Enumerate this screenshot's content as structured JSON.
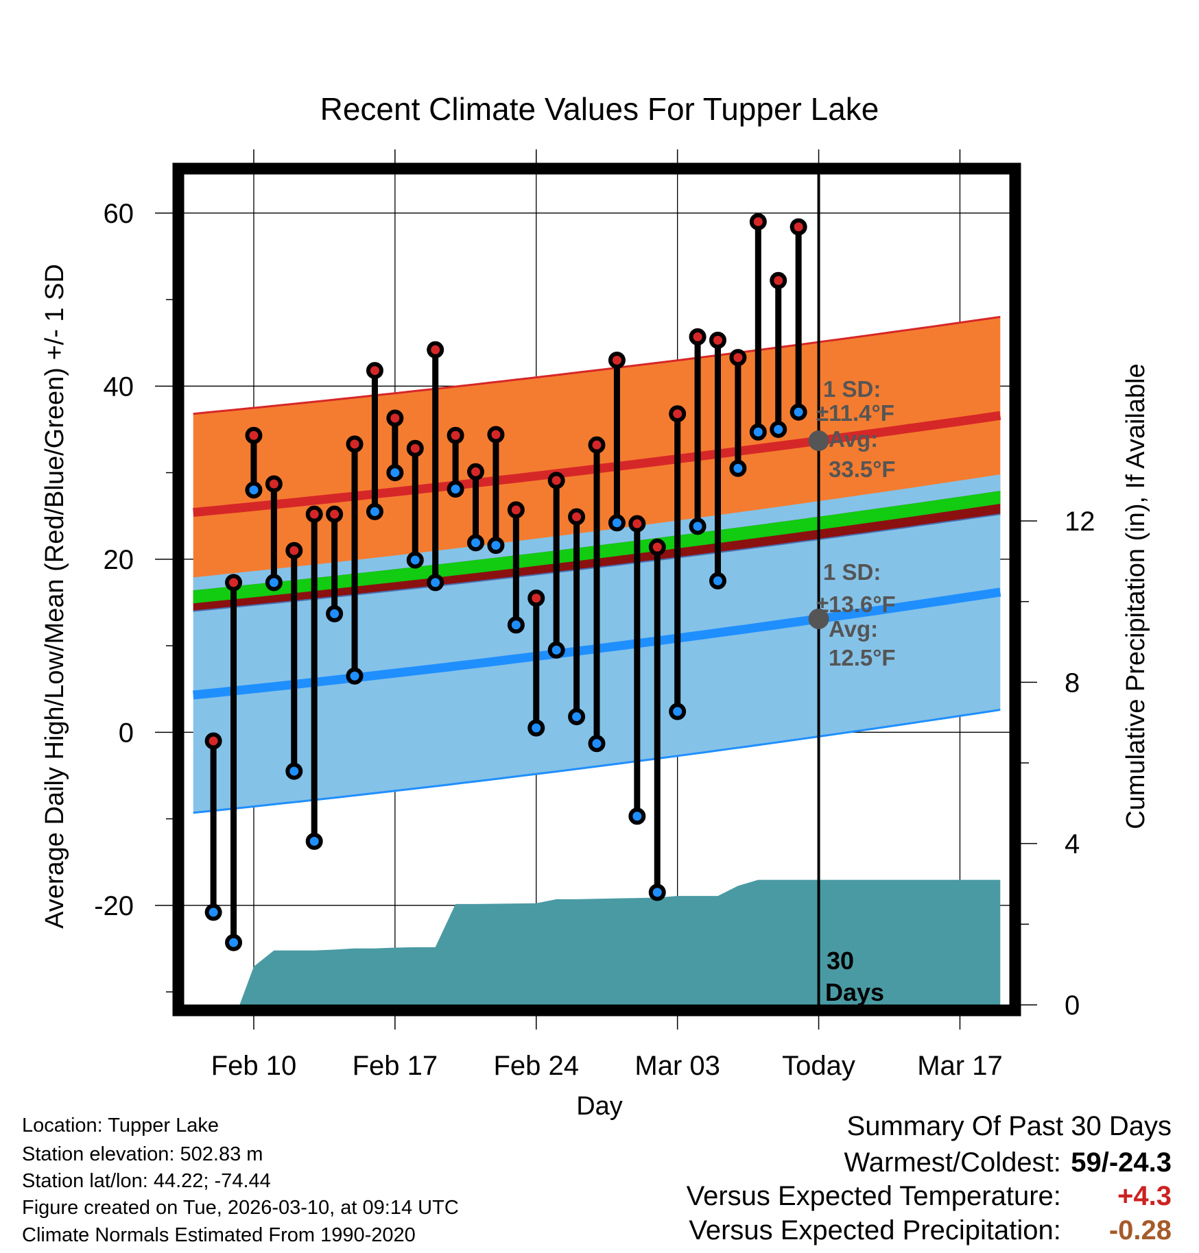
{
  "chart_data": {
    "type": "line",
    "title": "Recent Climate Values For Tupper Lake",
    "xlabel": "Day",
    "ylabel": "Average Daily High/Low/Mean (Red/Blue/Green) +/- 1 SD",
    "y2label": "Cumulative Precipitation (in), If Available",
    "x_tick_labels": [
      "Feb 10",
      "Feb 17",
      "Feb 24",
      "Mar 03",
      "Today",
      "Mar 17"
    ],
    "x_tick_days": [
      0,
      7,
      14,
      21,
      28,
      35
    ],
    "xlim": [
      -3.5,
      37.5
    ],
    "ylim": [
      -31.5,
      64.5
    ],
    "y_ticks": [
      -20,
      0,
      20,
      40,
      60
    ],
    "y2lim": [
      0,
      20.6
    ],
    "y2_ticks": [
      0,
      4,
      8,
      12
    ],
    "highs": [
      -1,
      17.3,
      34.3,
      28.7,
      21,
      25.2,
      25.2,
      33.3,
      41.8,
      36.3,
      32.8,
      44.2,
      34.3,
      30.1,
      34.4,
      25.7,
      15.5,
      29.1,
      24.9,
      33.2,
      43,
      24.1,
      21.4,
      36.8,
      45.7,
      45.3,
      43.3,
      59,
      52.2,
      58.4
    ],
    "lows": [
      -20.8,
      -24.3,
      28,
      17.3,
      -4.5,
      -12.6,
      13.7,
      6.5,
      25.5,
      30,
      19.9,
      17.3,
      28.1,
      21.9,
      21.6,
      12.4,
      0.5,
      9.5,
      1.8,
      -1.3,
      24.2,
      -9.7,
      -18.5,
      2.4,
      23.8,
      17.5,
      30.5,
      34.7,
      35,
      37
    ],
    "normal_high": {
      "day_start": -3,
      "day_end": 37,
      "start": 25.4,
      "end": 36.6,
      "sd": 11.4
    },
    "normal_low": {
      "day_start": -3,
      "day_end": 37,
      "start": 4.3,
      "end": 16.2,
      "sd": 13.6
    },
    "normal_mean": {
      "start": 14.9,
      "end": 26.4
    },
    "precip_days": [
      -0.7,
      0,
      1,
      2,
      3,
      4,
      5,
      6,
      7,
      8,
      9,
      10,
      11,
      14,
      15,
      16,
      17,
      18,
      19,
      20,
      21,
      22,
      23,
      24,
      25,
      26,
      27,
      37
    ],
    "precip_values": [
      0,
      0.95,
      1.35,
      1.35,
      1.35,
      1.37,
      1.4,
      1.4,
      1.42,
      1.43,
      1.43,
      2.5,
      2.5,
      2.52,
      2.62,
      2.62,
      2.63,
      2.64,
      2.65,
      2.66,
      2.7,
      2.7,
      2.7,
      2.95,
      3.1,
      3.1,
      3.1,
      3.1
    ],
    "today_day": 28,
    "annotations": {
      "high_sd": "1 SD:",
      "high_sd_value": "±11.4°F",
      "high_avg": "Avg:",
      "high_avg_value": "33.5°F",
      "low_sd": "1 SD:",
      "low_sd_value": "±13.6°F",
      "low_avg": "Avg:",
      "low_avg_value": "12.5°F",
      "days_line1": "30",
      "days_line2": "Days"
    },
    "colors": {
      "high": "#d62728",
      "low": "#1f8fff",
      "high_band": "#f47c30",
      "low_band": "#85c2e8",
      "overlap_band": "#8b1010",
      "mean_band": "#11cc11",
      "precip": "#4a9aa3",
      "warm_value": "#cc2222",
      "precip_value": "#a55a2a"
    }
  },
  "info": {
    "location": "Location: Tupper Lake",
    "elevation": "Station elevation: 502.83 m",
    "latlon": "Station lat/lon: 44.22; -74.44",
    "created": "Figure created on Tue, 2026-03-10, at 09:14 UTC",
    "normals": "Climate Normals Estimated From 1990-2020"
  },
  "summary": {
    "title": "Summary Of Past 30 Days",
    "warmest_label": "Warmest/Coldest:",
    "warmest_value": "59/-24.3",
    "temp_label": "Versus Expected Temperature:",
    "temp_value": "+4.3",
    "precip_label": "Versus Expected Precipitation:",
    "precip_value": "-0.28"
  }
}
